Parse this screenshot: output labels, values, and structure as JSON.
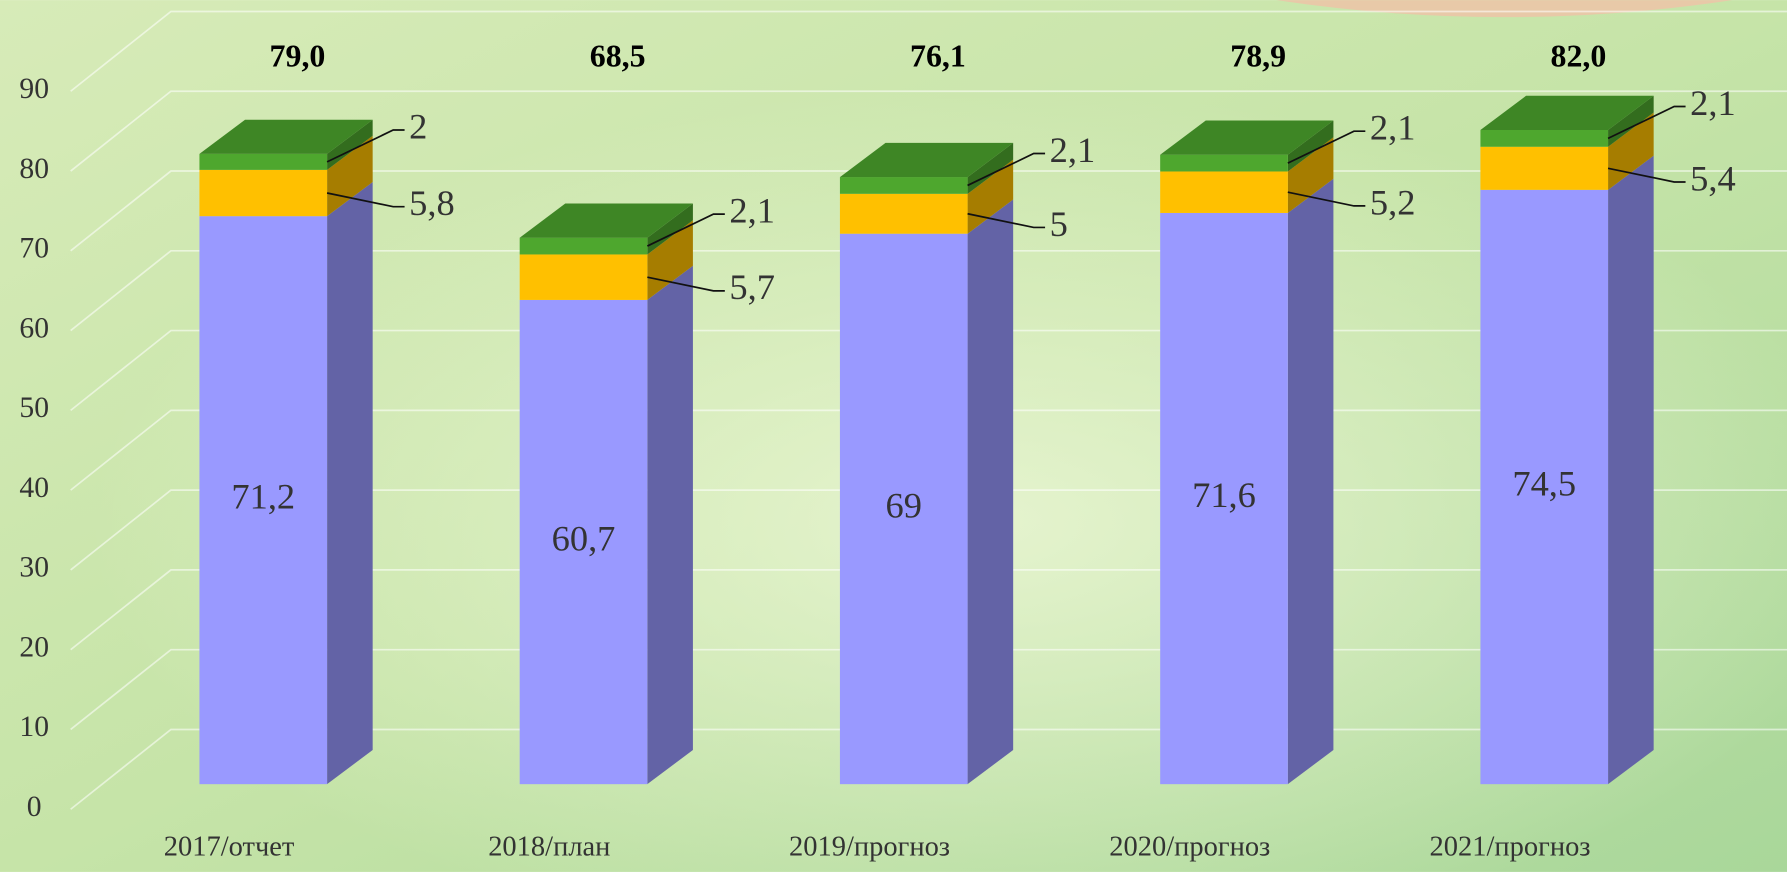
{
  "chart_data": {
    "type": "bar3d_stacked",
    "categories": [
      "2017/отчет",
      "2018/план",
      "2019/прогноз",
      "2020/прогноз",
      "2021/прогноз"
    ],
    "series": [
      {
        "color": "#9999ff",
        "values": [
          71.2,
          60.7,
          69,
          71.6,
          74.5
        ],
        "value_labels": [
          "71,2",
          "60,7",
          "69",
          "71,6",
          "74,5"
        ]
      },
      {
        "color": "#ffc000",
        "values": [
          5.8,
          5.7,
          5,
          5.2,
          5.4
        ],
        "value_labels": [
          "5,8",
          "5,7",
          "5",
          "5,2",
          "5,4"
        ]
      },
      {
        "color": "#4ea72e",
        "values": [
          2,
          2.1,
          2.1,
          2.1,
          2.1
        ],
        "value_labels": [
          "2",
          "2,1",
          "2,1",
          "2,1",
          "2,1"
        ]
      }
    ],
    "totals": {
      "values": [
        79.0,
        68.5,
        76.1,
        78.9,
        82.0
      ],
      "value_labels": [
        "79,0",
        "68,5",
        "76,1",
        "78,9",
        "82,0"
      ]
    },
    "ylim": [
      0,
      90
    ],
    "yticks": [
      0,
      10,
      20,
      30,
      40,
      50,
      60,
      70,
      80,
      90
    ],
    "grid": true
  }
}
